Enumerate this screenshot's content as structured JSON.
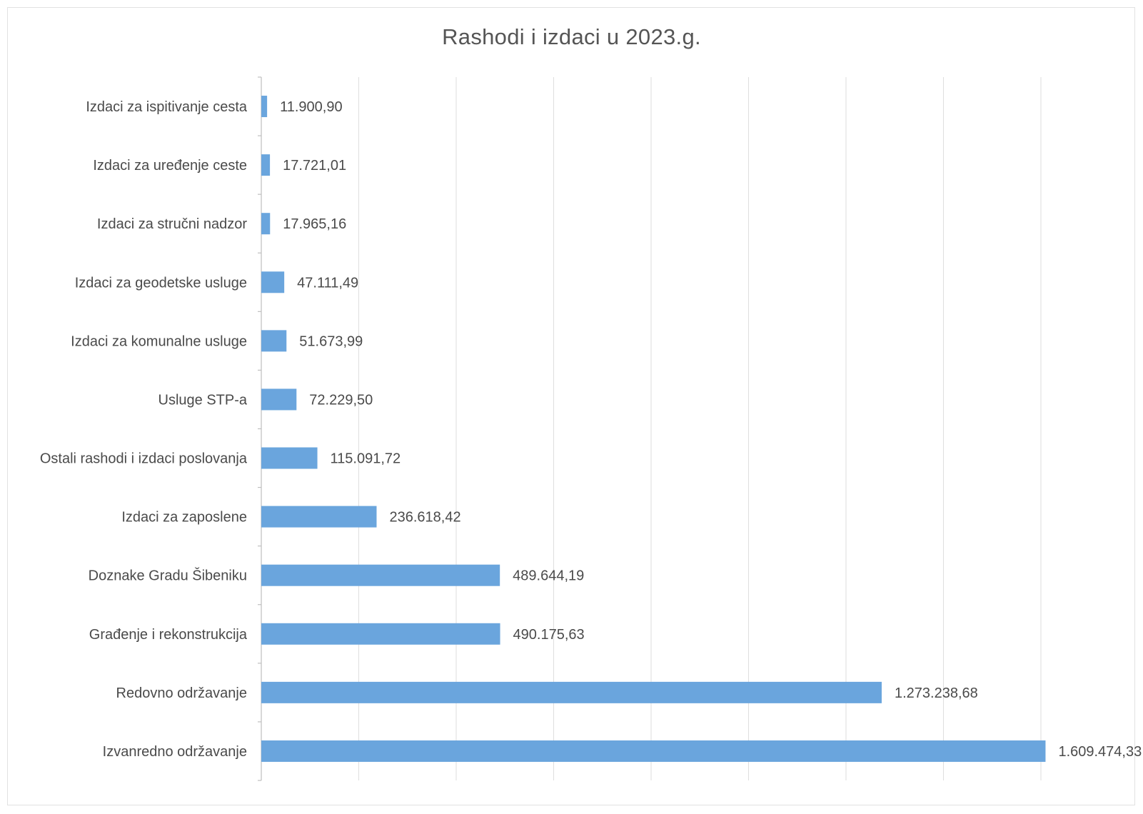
{
  "chart_data": {
    "type": "bar",
    "orientation": "horizontal",
    "title": "Rashodi i izdaci u 2023.g.",
    "xlabel": "",
    "ylabel": "",
    "xlim": [
      0,
      1600000
    ],
    "grid": true,
    "bar_color": "#6aa5dd",
    "categories": [
      "Izdaci za ispitivanje cesta",
      "Izdaci za uređenje ceste",
      "Izdaci za stručni nadzor",
      "Izdaci za geodetske usluge",
      "Izdaci za komunalne usluge",
      "Usluge STP-a",
      "Ostali rashodi i izdaci poslovanja",
      "Izdaci za zaposlene",
      "Doznake Gradu Šibeniku",
      "Građenje i rekonstrukcija",
      "Redovno održavanje",
      "Izvanredno održavanje"
    ],
    "values": [
      11900.9,
      17721.01,
      17965.16,
      47111.49,
      51673.99,
      72229.5,
      115091.72,
      236618.42,
      489644.19,
      490175.63,
      1273238.68,
      1609474.33
    ],
    "value_labels": [
      "11.900,90",
      "17.721,01",
      "17.965,16",
      "47.111,49",
      "51.673,99",
      "72.229,50",
      "115.091,72",
      "236.618,42",
      "489.644,19",
      "490.175,63",
      "1.273.238,68",
      "1.609.474,33"
    ]
  }
}
